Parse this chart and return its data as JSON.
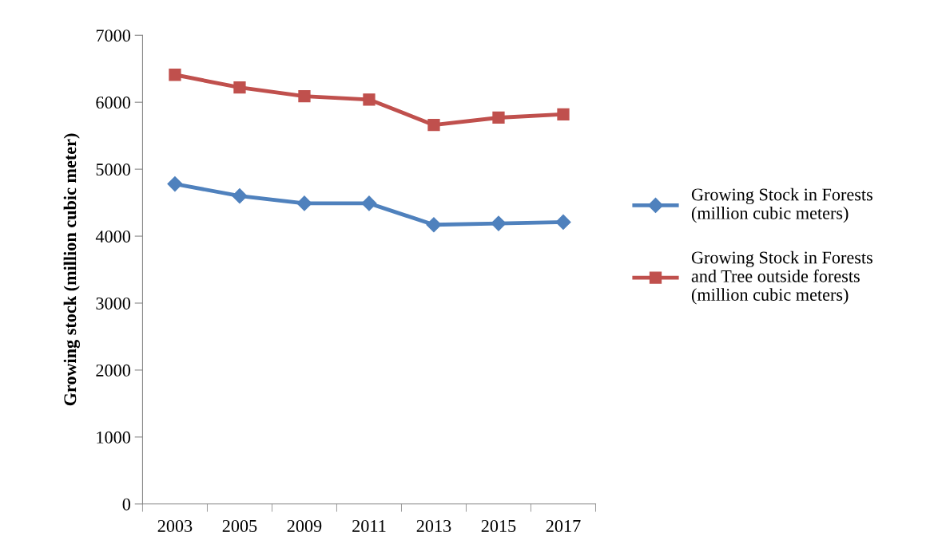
{
  "chart_data": {
    "type": "line",
    "ylabel": "Growing stock (million cubic meter)",
    "categories": [
      "2003",
      "2005",
      "2009",
      "2011",
      "2013",
      "2015",
      "2017"
    ],
    "series": [
      {
        "name": "Growing Stock in Forests (million cubic meters)",
        "color": "#4f81bd",
        "marker": "diamond",
        "values": [
          4780,
          4600,
          4490,
          4490,
          4170,
          4190,
          4210
        ]
      },
      {
        "name": "Growing Stock in Forests and Tree outside forests (million cubic meters)",
        "color": "#c0504d",
        "marker": "square",
        "values": [
          6410,
          6220,
          6090,
          6040,
          5660,
          5770,
          5820
        ]
      }
    ],
    "ylim": [
      0,
      7000
    ],
    "yticks": [
      0,
      1000,
      2000,
      3000,
      4000,
      5000,
      6000,
      7000
    ],
    "grid": false,
    "legend": "right",
    "line_style": "solid"
  }
}
